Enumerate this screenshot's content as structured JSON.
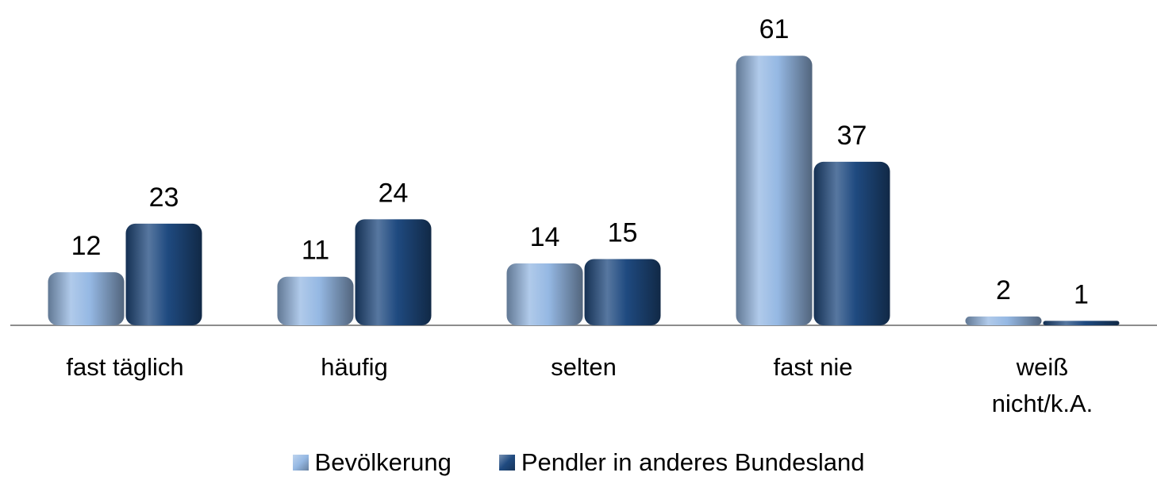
{
  "chart_data": {
    "type": "bar",
    "categories": [
      "fast täglich",
      "häufig",
      "selten",
      "fast nie",
      "weiß nicht/k.A."
    ],
    "series": [
      {
        "name": "Bevölkerung",
        "color": "#95b8e3",
        "values": [
          12,
          11,
          14,
          61,
          2
        ]
      },
      {
        "name": "Pendler in anderes Bundesland",
        "color": "#1f4a80",
        "values": [
          23,
          24,
          15,
          37,
          1
        ]
      }
    ]
  }
}
